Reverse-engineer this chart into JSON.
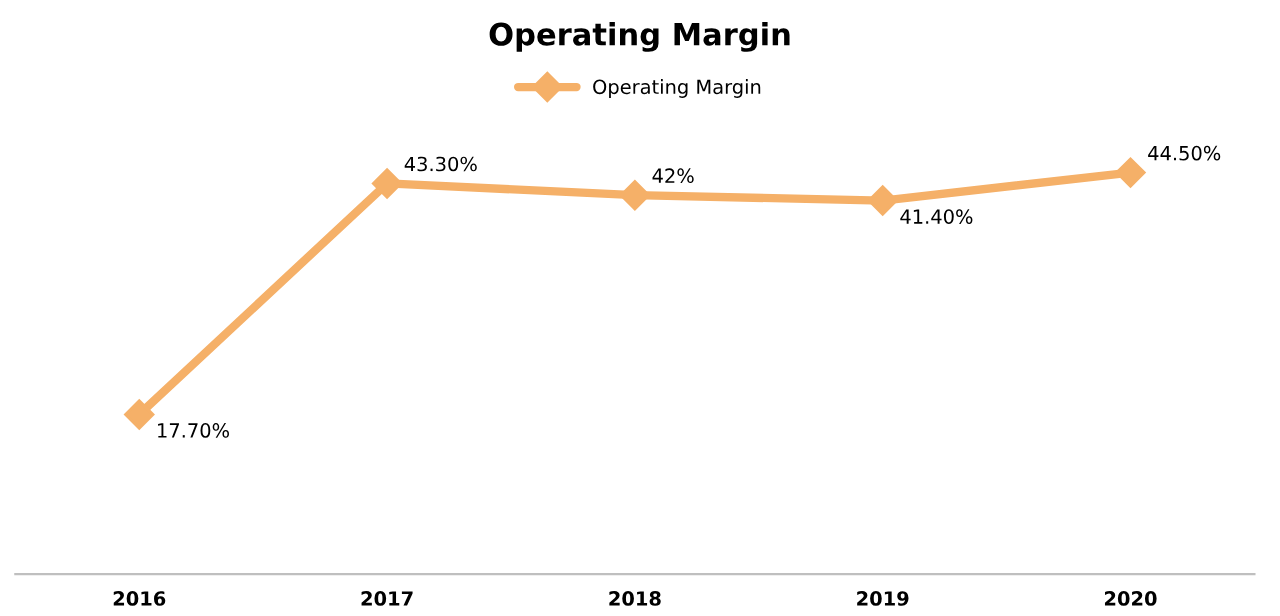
{
  "chart_data": {
    "type": "line",
    "title": "Operating Margin",
    "categories": [
      "2016",
      "2017",
      "2018",
      "2019",
      "2020"
    ],
    "series": [
      {
        "name": "Operating Margin",
        "color": "#f5b068",
        "values": [
          17.7,
          43.3,
          42,
          41.4,
          44.5
        ],
        "value_labels": [
          "17.70%",
          "43.30%",
          "42%",
          "41.40%",
          "44.50%"
        ]
      }
    ],
    "legend": "top",
    "marker": "diamond",
    "grid": false,
    "tick_labels": "x"
  }
}
